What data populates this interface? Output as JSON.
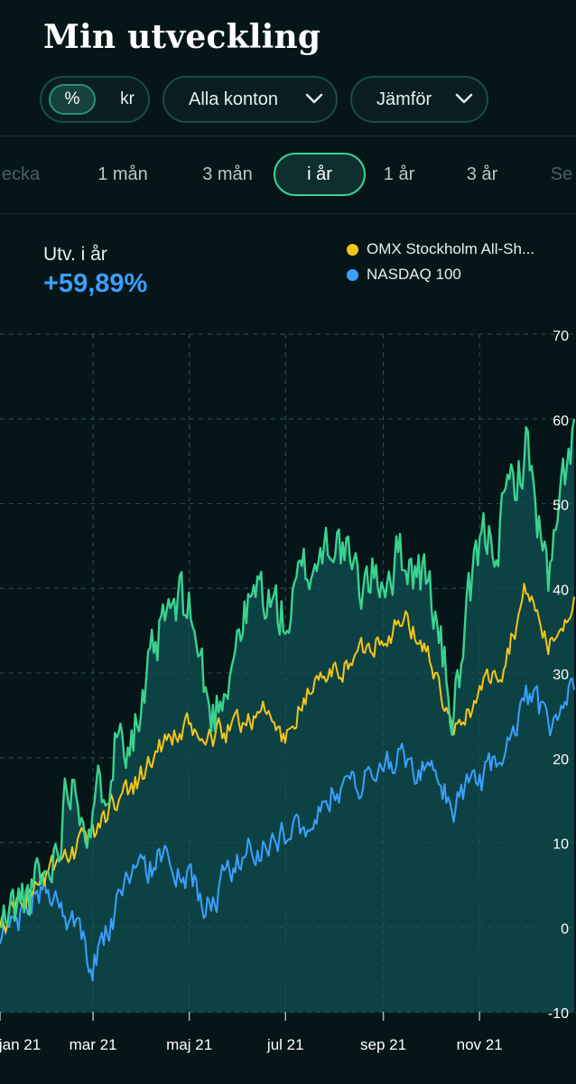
{
  "header": {
    "title": "Min utveckling"
  },
  "controls": {
    "unit_toggle": {
      "percent": "%",
      "currency": "kr",
      "selected": "%"
    },
    "accounts_dropdown": "Alla konton",
    "compare_dropdown": "Jämför"
  },
  "periods": [
    {
      "label": "ecka",
      "active": false
    },
    {
      "label": "1 mån",
      "active": false
    },
    {
      "label": "3 mån",
      "active": false
    },
    {
      "label": "i år",
      "active": true
    },
    {
      "label": "1 år",
      "active": false
    },
    {
      "label": "3 år",
      "active": false
    },
    {
      "label": "Se",
      "active": false
    }
  ],
  "summary": {
    "label": "Utv.  i år",
    "value": "+59,89%"
  },
  "colors": {
    "portfolio": "#3ad28f",
    "omx": "#f5c518",
    "nasdaq": "#3aa0ff",
    "fill": "#0e4447"
  },
  "chart_data": {
    "type": "line",
    "title": "",
    "xlabel": "",
    "ylabel": "",
    "ylim": [
      -10,
      70
    ],
    "y_ticks": [
      "70",
      "60",
      "50",
      "40",
      "30",
      "20",
      "10",
      "0",
      "-10"
    ],
    "x_ticks": [
      "jan 21",
      "mar 21",
      "maj 21",
      "jul 21",
      "sep 21",
      "nov 21"
    ],
    "grid": true,
    "legend_position": "top-right",
    "x": [
      "2021-01-01",
      "2021-01-15",
      "2021-02-01",
      "2021-02-15",
      "2021-03-01",
      "2021-03-15",
      "2021-04-01",
      "2021-04-15",
      "2021-05-01",
      "2021-05-15",
      "2021-06-01",
      "2021-06-15",
      "2021-07-01",
      "2021-07-15",
      "2021-08-01",
      "2021-08-15",
      "2021-09-01",
      "2021-09-15",
      "2021-10-01",
      "2021-10-15",
      "2021-11-01",
      "2021-11-15",
      "2021-12-01",
      "2021-12-15",
      "2021-12-31"
    ],
    "series": [
      {
        "name": "",
        "values": [
          0,
          3,
          6,
          19,
          12,
          23,
          25,
          36,
          38,
          24,
          35,
          40,
          36,
          42,
          47,
          40,
          42,
          44,
          40,
          25,
          44,
          48,
          57,
          40,
          60
        ]
      },
      {
        "name": "OMX Stockholm All-Sh...",
        "values": [
          0,
          4,
          6,
          8,
          11,
          15,
          18,
          22,
          23,
          22,
          24,
          26,
          22,
          28,
          30,
          32,
          35,
          36,
          32,
          22,
          28,
          31,
          40,
          33,
          39
        ]
      },
      {
        "name": "NASDAQ 100",
        "values": [
          -2,
          2,
          5,
          0,
          -4,
          2,
          7,
          8,
          5,
          3,
          8,
          10,
          11,
          13,
          16,
          17,
          19,
          20,
          18,
          14,
          17,
          19,
          27,
          24,
          28
        ]
      }
    ]
  }
}
